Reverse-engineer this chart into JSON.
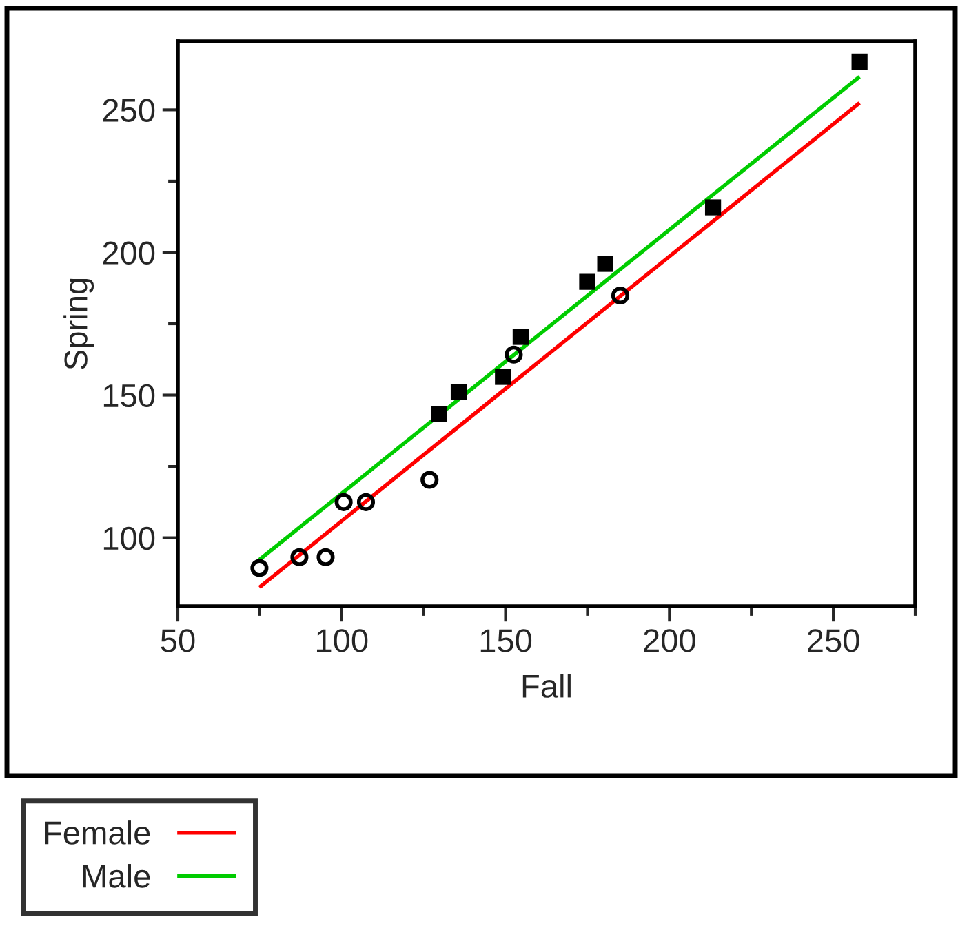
{
  "chart_data": {
    "type": "scatter",
    "xlabel": "Fall",
    "ylabel": "Spring",
    "xlim": [
      50,
      275
    ],
    "ylim": [
      76,
      274
    ],
    "xticks": [
      50,
      100,
      150,
      200,
      250
    ],
    "yticks": [
      100,
      150,
      200,
      250
    ],
    "grid": false,
    "legend": "bottom left",
    "series": [
      {
        "marker": "circle",
        "color": "#000000",
        "x": [
          74.9,
          87.1,
          95.1,
          100.6,
          107.4,
          126.8,
          152.5,
          185.0
        ],
        "values": [
          89.4,
          93.2,
          93.2,
          112.5,
          112.5,
          120.3,
          164.2,
          184.9
        ]
      },
      {
        "marker": "square",
        "color": "#000000",
        "x": [
          129.7,
          135.7,
          149.2,
          154.6,
          174.9,
          180.4,
          213.3,
          258.0
        ],
        "values": [
          143.4,
          151.1,
          156.4,
          170.4,
          189.7,
          196.0,
          215.8,
          266.9
        ]
      },
      {
        "type": "line",
        "name": "Female",
        "color": "#ff0000",
        "x": [
          74.9,
          258.0
        ],
        "values": [
          82.6,
          252.4
        ]
      },
      {
        "type": "line",
        "name": "Male",
        "color": "#00cc00",
        "x": [
          74.9,
          258.0
        ],
        "values": [
          92.3,
          261.6
        ]
      }
    ]
  }
}
